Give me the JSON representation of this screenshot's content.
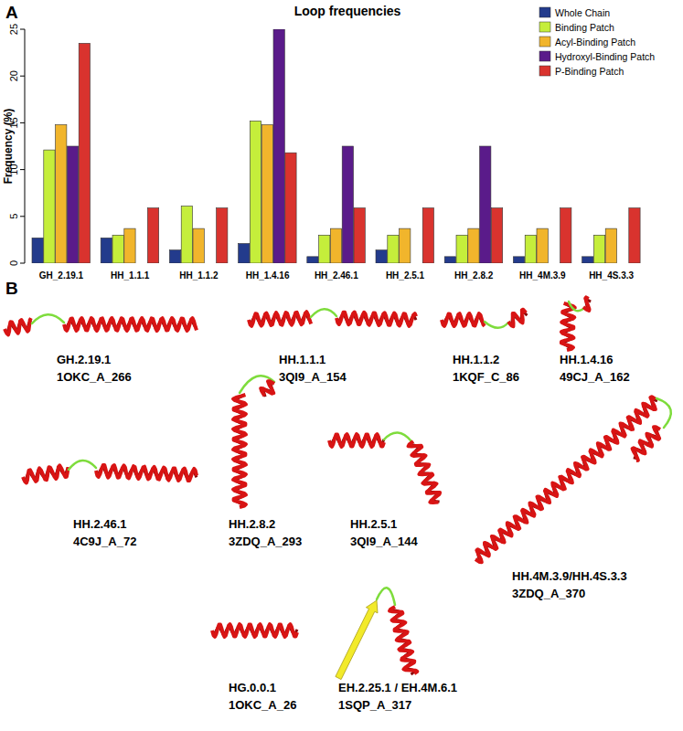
{
  "chart_data": {
    "type": "bar",
    "title": "Loop frequencies",
    "y_label": "Frequency (%)",
    "categories": [
      "GH_2.19.1",
      "HH_1.1.1",
      "HH_1.1.2",
      "HH_1.4.16",
      "HH_2.46.1",
      "HH_2.5.1",
      "HH_2.8.2",
      "HH_4M.3.9",
      "HH_4S.3.3"
    ],
    "series": [
      {
        "name": "Whole Chain",
        "color": "#233b8c",
        "values": [
          2.7,
          2.7,
          1.4,
          2.1,
          0.7,
          1.4,
          0.7,
          0.7,
          0.7
        ]
      },
      {
        "name": "Binding Patch",
        "color": "#c5ee3b",
        "values": [
          12.1,
          3.0,
          6.1,
          15.2,
          3.0,
          3.0,
          3.0,
          3.0,
          3.0
        ]
      },
      {
        "name": "Acyl-Binding Patch",
        "color": "#f1b52c",
        "values": [
          14.8,
          3.7,
          3.7,
          14.8,
          3.7,
          3.7,
          3.7,
          3.7,
          3.7
        ]
      },
      {
        "name": "Hydroxyl-Binding Patch",
        "color": "#5a1b8a",
        "values": [
          12.5,
          0,
          0,
          25.0,
          12.5,
          0,
          12.5,
          0,
          0
        ]
      },
      {
        "name": "P-Binding Patch",
        "color": "#d9332e",
        "values": [
          23.5,
          5.9,
          5.9,
          11.8,
          5.9,
          5.9,
          5.9,
          5.9,
          5.9
        ]
      }
    ],
    "ylim": [
      0,
      25
    ],
    "yticks": [
      0,
      5,
      10,
      15,
      20,
      25
    ],
    "grid": false,
    "legend": "top-right"
  },
  "panel_labels": [
    "A",
    "B"
  ],
  "structures": [
    {
      "loop": "GH.2.19.1",
      "pdb": "1OKC_A_266"
    },
    {
      "loop": "HH.1.1.1",
      "pdb": "3QI9_A_154"
    },
    {
      "loop": "HH.1.1.2",
      "pdb": "1KQF_C_86"
    },
    {
      "loop": "HH.1.4.16",
      "pdb": "49CJ_A_162"
    },
    {
      "loop": "HH.2.46.1",
      "pdb": "4C9J_A_72"
    },
    {
      "loop": "HH.2.8.2",
      "pdb": "3ZDQ_A_293"
    },
    {
      "loop": "HH.2.5.1",
      "pdb": "3QI9_A_144"
    },
    {
      "loop": "HH.4M.3.9/HH.4S.3.3",
      "pdb": "3ZDQ_A_370"
    },
    {
      "loop": "HG.0.0.1",
      "pdb": "1OKC_A_26"
    },
    {
      "loop": "EH.2.25.1 / EH.4M.6.1",
      "pdb": "1SQP_A_317"
    }
  ]
}
